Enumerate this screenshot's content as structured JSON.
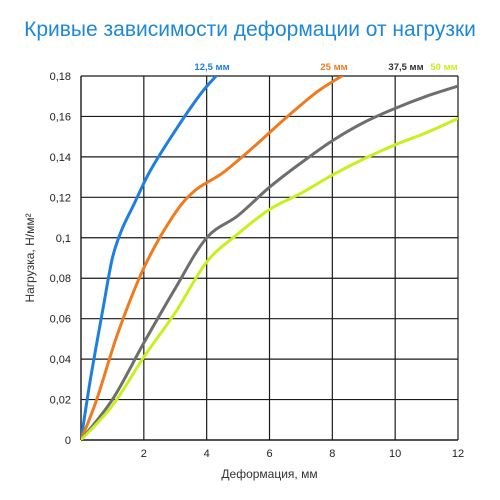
{
  "chart_data": {
    "type": "line",
    "title": "Кривые зависимости деформации от нагрузки",
    "xlabel": "Деформация, мм",
    "ylabel": "Нагрузка, Н/мм²",
    "xlim": [
      0,
      12
    ],
    "ylim": [
      0,
      0.18
    ],
    "x_ticks": [
      {
        "value": 2,
        "label": "2"
      },
      {
        "value": 4,
        "label": "4"
      },
      {
        "value": 6,
        "label": "6"
      },
      {
        "value": 8,
        "label": "8"
      },
      {
        "value": 10,
        "label": "10"
      },
      {
        "value": 12,
        "label": "12"
      }
    ],
    "y_ticks": [
      {
        "value": 0,
        "label": "0"
      },
      {
        "value": 0.02,
        "label": "0,02"
      },
      {
        "value": 0.04,
        "label": "0,04"
      },
      {
        "value": 0.06,
        "label": "0,06"
      },
      {
        "value": 0.08,
        "label": "0,08"
      },
      {
        "value": 0.1,
        "label": "0,1"
      },
      {
        "value": 0.12,
        "label": "0,12"
      },
      {
        "value": 0.14,
        "label": "0,14"
      },
      {
        "value": 0.16,
        "label": "0,16"
      },
      {
        "value": 0.18,
        "label": "0,18"
      }
    ],
    "grid": true,
    "legend": "top",
    "series": [
      {
        "name": "12,5 мм",
        "color": "#1f7fe0",
        "points": [
          [
            0,
            0
          ],
          [
            0.3,
            0.03
          ],
          [
            0.7,
            0.065
          ],
          [
            1.0,
            0.09
          ],
          [
            1.3,
            0.104
          ],
          [
            1.7,
            0.117
          ],
          [
            2.2,
            0.133
          ],
          [
            3.0,
            0.153
          ],
          [
            3.8,
            0.171
          ],
          [
            4.3,
            0.18
          ]
        ]
      },
      {
        "name": "25 мм",
        "color": "#f07a1e",
        "points": [
          [
            0,
            0
          ],
          [
            0.5,
            0.02
          ],
          [
            1.2,
            0.054
          ],
          [
            2.0,
            0.085
          ],
          [
            2.9,
            0.11
          ],
          [
            3.6,
            0.123
          ],
          [
            4.5,
            0.132
          ],
          [
            5.5,
            0.145
          ],
          [
            6.5,
            0.159
          ],
          [
            7.5,
            0.172
          ],
          [
            8.3,
            0.18
          ]
        ]
      },
      {
        "name": "37,5 мм",
        "color": "#6e6e6e",
        "points": [
          [
            0,
            0
          ],
          [
            1.0,
            0.02
          ],
          [
            2.0,
            0.048
          ],
          [
            3.0,
            0.075
          ],
          [
            4.0,
            0.1
          ],
          [
            5.0,
            0.111
          ],
          [
            6.0,
            0.125
          ],
          [
            7.0,
            0.137
          ],
          [
            8.0,
            0.148
          ],
          [
            9.0,
            0.157
          ],
          [
            10.0,
            0.164
          ],
          [
            11.0,
            0.17
          ],
          [
            12.0,
            0.175
          ]
        ]
      },
      {
        "name": "50 мм",
        "color": "#c8f01e",
        "points": [
          [
            0,
            0
          ],
          [
            1.0,
            0.017
          ],
          [
            2.0,
            0.041
          ],
          [
            3.0,
            0.063
          ],
          [
            4.0,
            0.088
          ],
          [
            5.0,
            0.102
          ],
          [
            6.0,
            0.114
          ],
          [
            7.0,
            0.122
          ],
          [
            8.0,
            0.131
          ],
          [
            9.0,
            0.139
          ],
          [
            10.0,
            0.146
          ],
          [
            11.0,
            0.152
          ],
          [
            12.0,
            0.159
          ]
        ]
      }
    ]
  }
}
